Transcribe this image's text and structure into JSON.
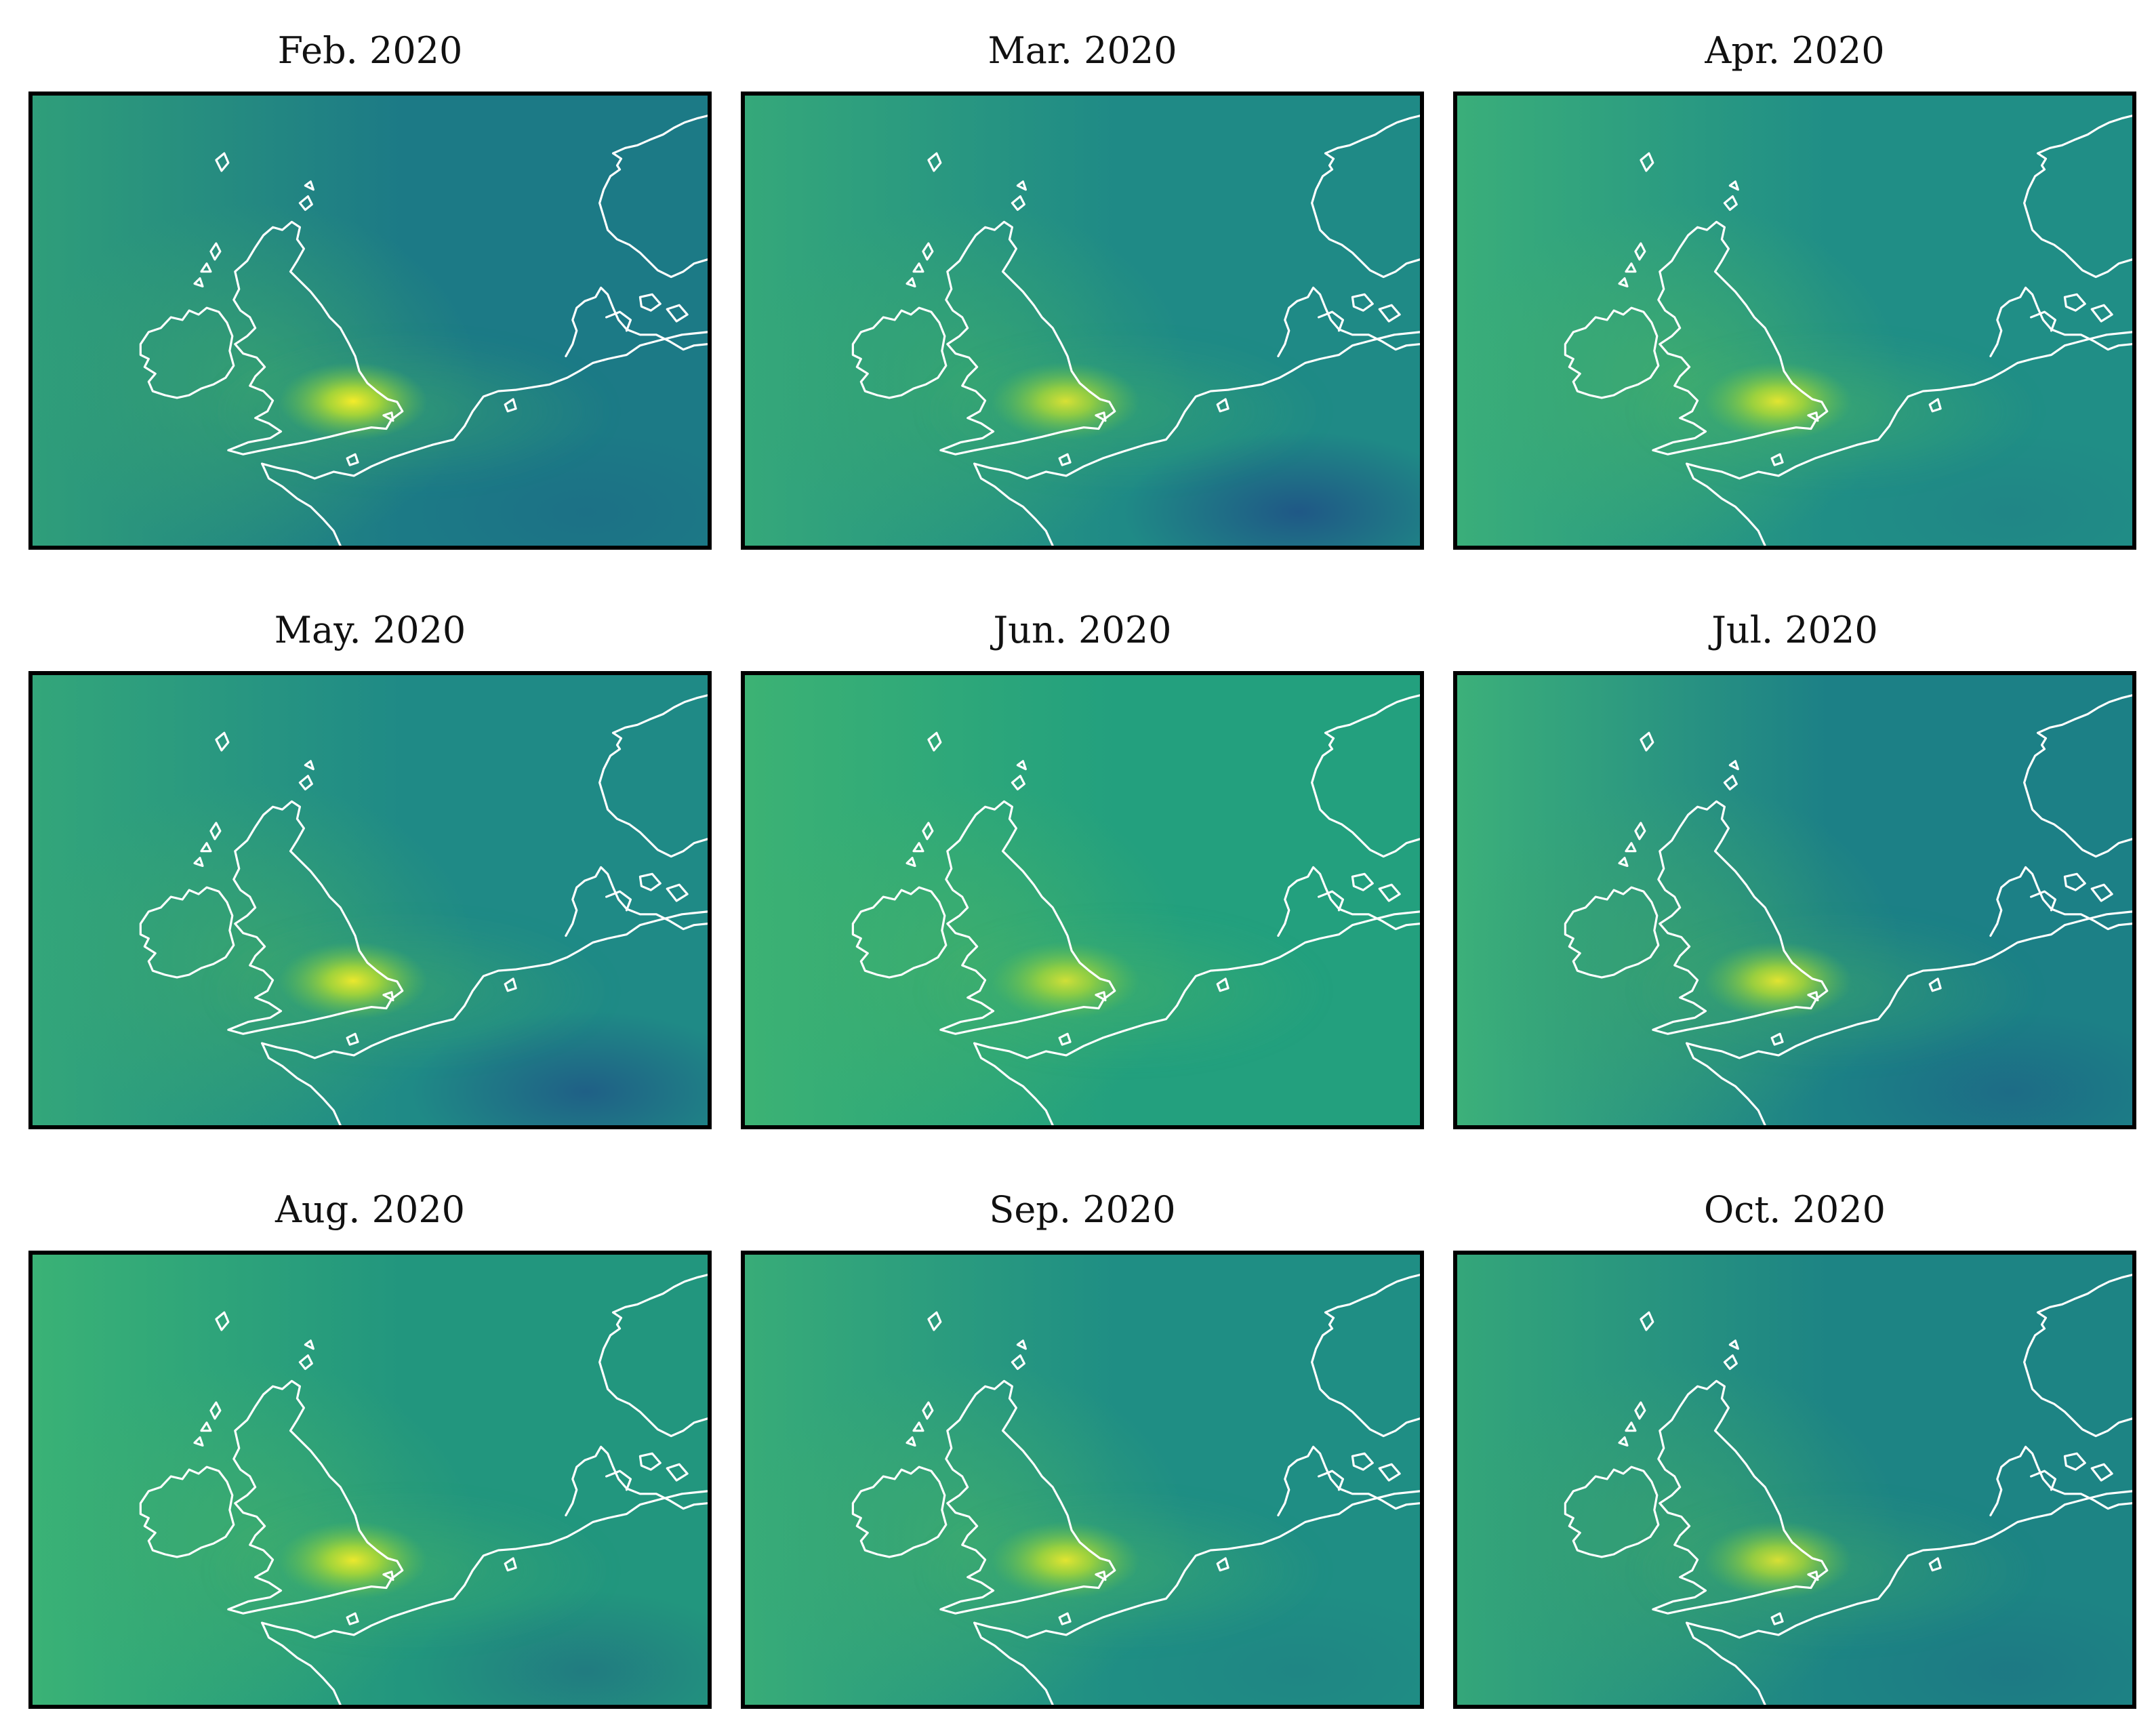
{
  "figure": {
    "panels": [
      {
        "title": "Feb. 2020",
        "style": {
          "base": "#1c7a86",
          "west": "#2f9e7a",
          "hot": 1.0,
          "plume": "#3aa66e",
          "dark": 0.15
        }
      },
      {
        "title": "Mar. 2020",
        "style": {
          "base": "#1f8a86",
          "west": "#35a87a",
          "hot": 0.85,
          "plume": "#3aaa6e",
          "dark": 0.65
        }
      },
      {
        "title": "Apr. 2020",
        "style": {
          "base": "#208e86",
          "west": "#3aae7a",
          "hot": 0.9,
          "plume": "#44b06a",
          "dark": 0.1
        }
      },
      {
        "title": "May. 2020",
        "style": {
          "base": "#1f8a86",
          "west": "#33a67a",
          "hot": 0.95,
          "plume": "#3ca86c",
          "dark": 0.55
        }
      },
      {
        "title": "Jun. 2020",
        "style": {
          "base": "#23a07e",
          "west": "#3cb274",
          "hot": 0.8,
          "plume": "#42b06a",
          "dark": 0.0
        }
      },
      {
        "title": "Jul. 2020",
        "style": {
          "base": "#1c8086",
          "west": "#3cb07a",
          "hot": 0.9,
          "plume": "#3aa46e",
          "dark": 0.3
        }
      },
      {
        "title": "Aug. 2020",
        "style": {
          "base": "#22967e",
          "west": "#3ab276",
          "hot": 0.95,
          "plume": "#40ae6c",
          "dark": 0.3
        }
      },
      {
        "title": "Sep. 2020",
        "style": {
          "base": "#1f8e84",
          "west": "#38ac78",
          "hot": 0.9,
          "plume": "#40ae6c",
          "dark": 0.1
        }
      },
      {
        "title": "Oct. 2020",
        "style": {
          "base": "#1d8484",
          "west": "#34a67a",
          "hot": 0.85,
          "plume": "#3aa46e",
          "dark": 0.15
        }
      }
    ],
    "colormap": "viridis",
    "coastline_color": "#ffffff"
  }
}
